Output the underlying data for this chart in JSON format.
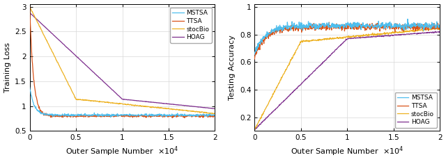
{
  "fig_width": 6.4,
  "fig_height": 2.33,
  "dpi": 100,
  "left_ylabel": "Training Loss",
  "left_xlabel": "Outer Sample Number",
  "right_ylabel": "Testing Accuracy",
  "right_xlabel": "Outer Sample Number",
  "xlim": [
    0,
    20000
  ],
  "left_ylim": [
    0.5,
    3.05
  ],
  "right_ylim": [
    0.1,
    1.02
  ],
  "left_yticks": [
    0.5,
    1.0,
    1.5,
    2.0,
    2.5,
    3.0
  ],
  "right_yticks": [
    0.2,
    0.4,
    0.6,
    0.8,
    1.0
  ],
  "xticks": [
    0,
    5000,
    10000,
    15000,
    20000
  ],
  "xtick_labels": [
    "0",
    "0.5",
    "1",
    "1.5",
    "2"
  ],
  "colors": {
    "MSTSA": "#4DBEEE",
    "TTSA": "#D95319",
    "stocBio": "#EDB120",
    "HOAG": "#7E2F8E"
  },
  "legend_labels": [
    "MSTSA",
    "TTSA",
    "stocBio",
    "HOAG"
  ],
  "noise_std": 0.012,
  "n_points": 600
}
